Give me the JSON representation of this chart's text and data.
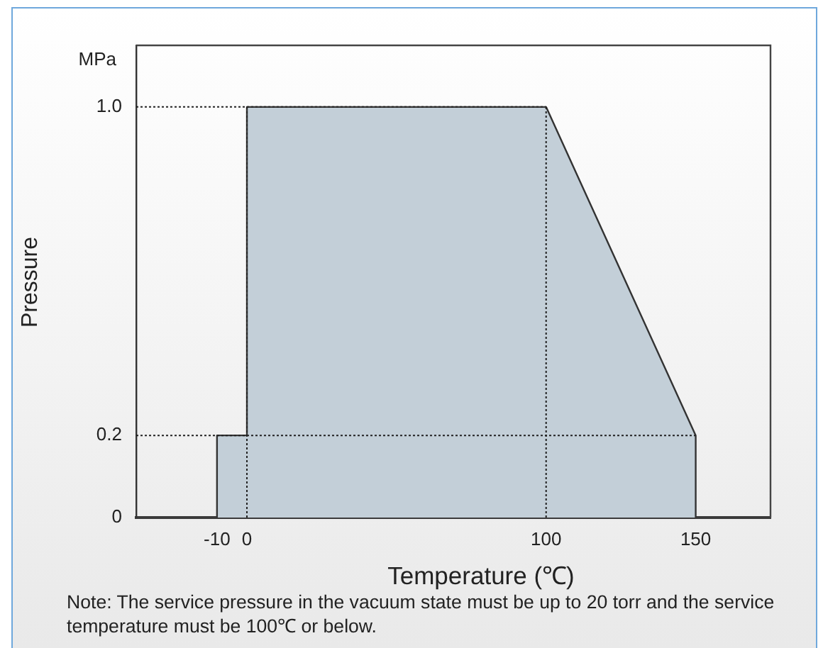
{
  "chart_data": {
    "type": "area",
    "xlabel": "Temperature (℃)",
    "ylabel": "Pressure",
    "annotations": [
      "MPa",
      "Note: The service pressure in the vacuum state must be up to 20 torr and the service temperature must be 100℃ or below."
    ],
    "x": [
      -10,
      -10,
      0,
      0,
      100,
      150,
      150
    ],
    "series": [
      {
        "color": "#c3cfd8",
        "values": [
          0,
          0.2,
          0.2,
          1.0,
          1.0,
          0.2,
          0
        ]
      }
    ],
    "xlim": [
      -37,
      175
    ],
    "xticks": [
      -10,
      0,
      100,
      150
    ],
    "ylim": [
      0,
      1.15
    ],
    "yticks": [
      0,
      0.2,
      {
        "value": 1.0,
        "label": "1.0"
      }
    ],
    "ref_lines": [
      {
        "axis": "y",
        "value": 1.0,
        "line_style": "dotted"
      },
      {
        "axis": "y",
        "value": 0.2,
        "line_style": "dotted"
      },
      {
        "axis": "x",
        "value": 0,
        "line_style": "dotted"
      },
      {
        "axis": "x",
        "value": 100,
        "line_style": "dotted"
      }
    ]
  }
}
